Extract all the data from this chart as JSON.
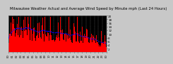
{
  "title": "Milwaukee Weather Actual and Average Wind Speed by Minute mph (Last 24 Hours)",
  "background_color": "#c8c8c8",
  "plot_bg_color": "#000000",
  "bar_color": "#ff0000",
  "line_color": "#0000ff",
  "grid_color": "#888888",
  "n_points": 1440,
  "ylim": [
    0,
    20
  ],
  "yticks": [
    2,
    4,
    6,
    8,
    10,
    12,
    14,
    16,
    18,
    20
  ],
  "ytick_labels": [
    "2",
    "4",
    "6",
    "8",
    "10",
    "12",
    "14",
    "16",
    "18",
    "20"
  ],
  "title_fontsize": 3.8,
  "axis_fontsize": 3.0,
  "line_width": 0.5,
  "bar_width": 1.0,
  "n_vlines": 24
}
